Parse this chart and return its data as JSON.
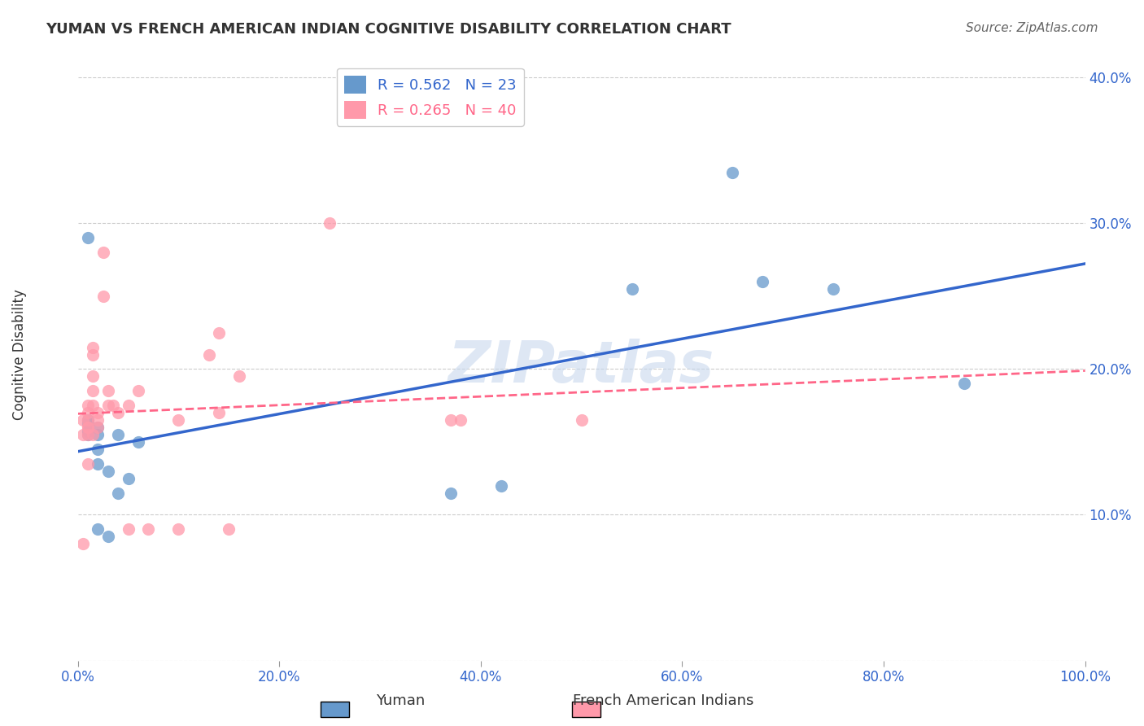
{
  "title": "YUMAN VS FRENCH AMERICAN INDIAN COGNITIVE DISABILITY CORRELATION CHART",
  "source": "Source: ZipAtlas.com",
  "xlabel_bottom": "",
  "ylabel": "Cognitive Disability",
  "xlim": [
    0.0,
    1.0
  ],
  "ylim": [
    0.0,
    0.42
  ],
  "x_ticks": [
    0.0,
    0.2,
    0.4,
    0.6,
    0.8,
    1.0
  ],
  "x_tick_labels": [
    "0.0%",
    "20.0%",
    "40.0%",
    "60.0%",
    "80.0%",
    "100.0%"
  ],
  "y_ticks": [
    0.0,
    0.1,
    0.2,
    0.3,
    0.4
  ],
  "y_tick_labels": [
    "",
    "10.0%",
    "20.0%",
    "30.0%",
    "40.0%"
  ],
  "yuman_color": "#6699CC",
  "french_color": "#FF99AA",
  "trend_yuman_color": "#3366CC",
  "trend_french_color": "#FF6688",
  "legend_R_yuman": "R = 0.562",
  "legend_N_yuman": "N = 23",
  "legend_R_french": "R = 0.265",
  "legend_N_french": "N = 40",
  "watermark": "ZIPatlas",
  "yuman_x": [
    0.01,
    0.01,
    0.01,
    0.01,
    0.01,
    0.02,
    0.02,
    0.02,
    0.02,
    0.02,
    0.03,
    0.03,
    0.04,
    0.04,
    0.05,
    0.06,
    0.37,
    0.42,
    0.55,
    0.65,
    0.68,
    0.75,
    0.88
  ],
  "yuman_y": [
    0.29,
    0.165,
    0.163,
    0.157,
    0.155,
    0.16,
    0.155,
    0.145,
    0.135,
    0.09,
    0.13,
    0.085,
    0.155,
    0.115,
    0.125,
    0.15,
    0.115,
    0.12,
    0.255,
    0.335,
    0.26,
    0.255,
    0.19
  ],
  "french_x": [
    0.005,
    0.005,
    0.005,
    0.01,
    0.01,
    0.01,
    0.01,
    0.01,
    0.01,
    0.01,
    0.015,
    0.015,
    0.015,
    0.015,
    0.015,
    0.015,
    0.02,
    0.02,
    0.02,
    0.025,
    0.025,
    0.03,
    0.03,
    0.035,
    0.04,
    0.05,
    0.05,
    0.06,
    0.07,
    0.1,
    0.1,
    0.13,
    0.14,
    0.14,
    0.15,
    0.16,
    0.25,
    0.37,
    0.38,
    0.5
  ],
  "french_y": [
    0.08,
    0.155,
    0.165,
    0.175,
    0.17,
    0.165,
    0.16,
    0.16,
    0.155,
    0.135,
    0.215,
    0.21,
    0.195,
    0.185,
    0.175,
    0.155,
    0.165,
    0.16,
    0.17,
    0.28,
    0.25,
    0.185,
    0.175,
    0.175,
    0.17,
    0.175,
    0.09,
    0.185,
    0.09,
    0.165,
    0.09,
    0.21,
    0.225,
    0.17,
    0.09,
    0.195,
    0.3,
    0.165,
    0.165,
    0.165
  ]
}
